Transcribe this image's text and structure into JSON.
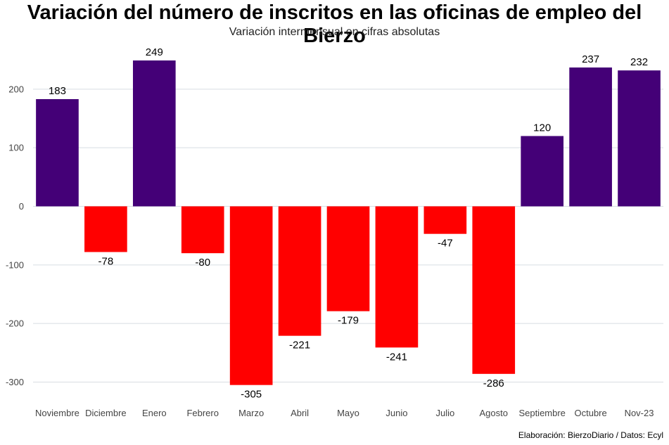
{
  "title": "Variación del número de inscritos en las oficinas de empleo del Bierzo",
  "subtitle": "Variación intermensual en cifras absolutas",
  "caption": "Elaboración: BierzoDiario / Datos: Ecyl",
  "colors": {
    "positive": "#440077",
    "negative": "#ff0000",
    "grid": "#d8dde2"
  },
  "chart_data": {
    "type": "bar",
    "categories": [
      "Noviembre",
      "Diciembre",
      "Enero",
      "Febrero",
      "Marzo",
      "Abril",
      "Mayo",
      "Junio",
      "Julio",
      "Agosto",
      "Septiembre",
      "Octubre",
      "Nov-23"
    ],
    "values": [
      183,
      -78,
      249,
      -80,
      -305,
      -221,
      -179,
      -241,
      -47,
      -286,
      120,
      237,
      232
    ],
    "yticks": [
      -300,
      -200,
      -100,
      0,
      100,
      200
    ],
    "ylim": [
      -335,
      265
    ],
    "grid": true,
    "legend": "none"
  }
}
